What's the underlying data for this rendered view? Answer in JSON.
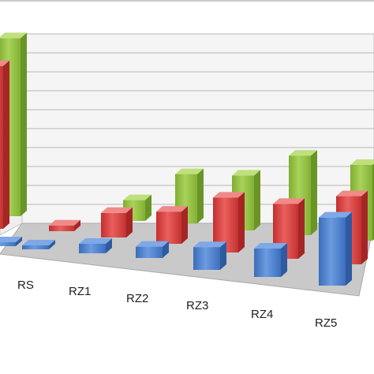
{
  "chart_data": {
    "type": "bar",
    "categories": [
      "",
      "RS",
      "RZ1",
      "RZ2",
      "RZ3",
      "RZ4",
      "RZ5"
    ],
    "series": [
      {
        "color": "#4a7ecb",
        "values": [
          0.2,
          0.1,
          0.5,
          0.6,
          1.2,
          1.5,
          3.6
        ]
      },
      {
        "color": "#d03c3b",
        "values": [
          8.6,
          0.3,
          1.3,
          1.7,
          2.9,
          2.9,
          3.6
        ]
      },
      {
        "color": "#8fbd3f",
        "values": [
          9.4,
          null,
          1.1,
          2.6,
          2.9,
          4.2,
          4.0
        ]
      }
    ],
    "ylim": [
      0,
      10
    ],
    "grid": true,
    "legend": "none"
  }
}
